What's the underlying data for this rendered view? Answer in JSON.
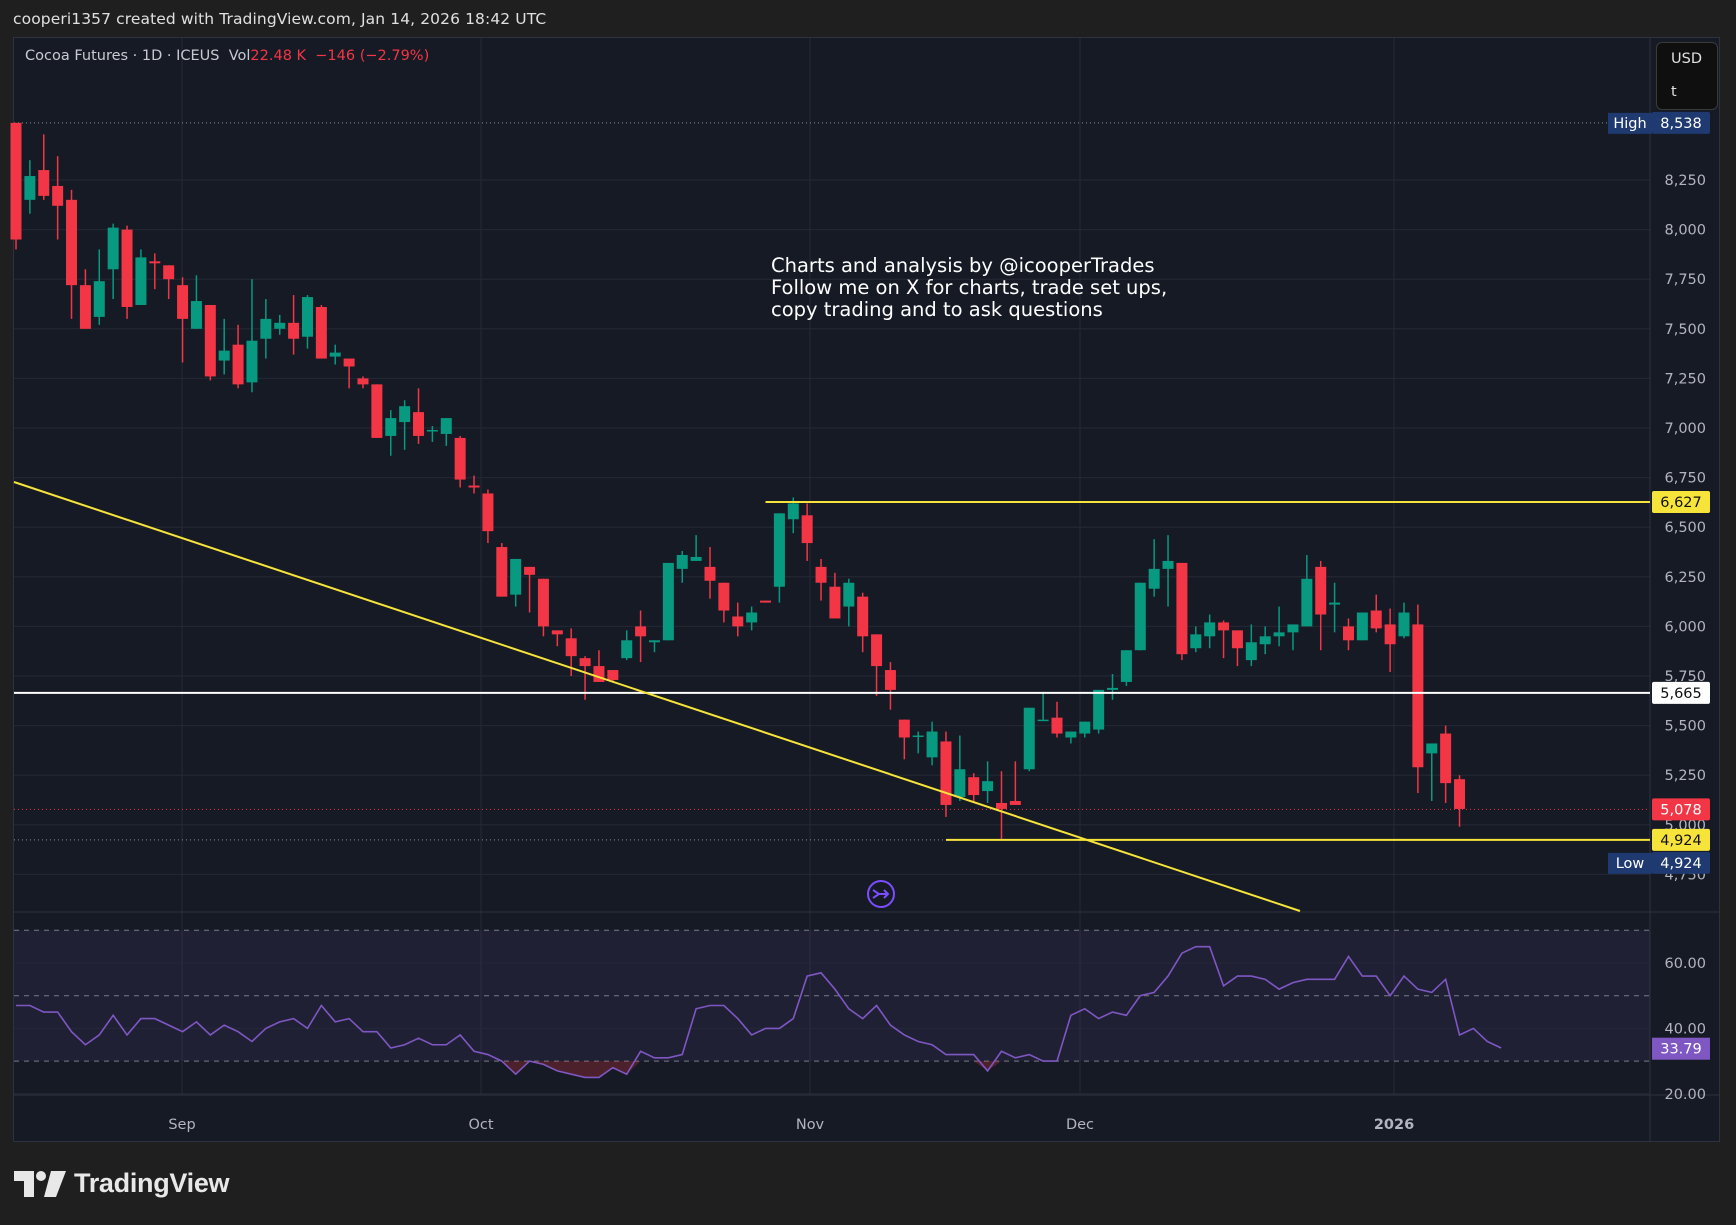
{
  "header": {
    "credit": "cooperi1357 created with TradingView.com, Jan 14, 2026 18:42 UTC"
  },
  "legend": {
    "symbol": "Cocoa Futures · 1D · ICEUS",
    "vol_label": "Vol",
    "vol_value": "22.48 K",
    "change": "−146 (−2.79%)"
  },
  "unit_box": {
    "currency": "USD",
    "unit": "t"
  },
  "annotation": {
    "lines": [
      "Charts and analysis by @icooperTrades",
      "Follow me on X for charts, trade set ups,",
      "copy trading and to ask questions"
    ]
  },
  "footer": {
    "brand": "TradingView"
  },
  "colors": {
    "up": "#089981",
    "down": "#f23645",
    "bg": "#161a25",
    "grid": "#252936",
    "trendline": "#f7e43a",
    "support": "#ffffff",
    "rsi": "#7e57c2",
    "high_low_badge": "#1e3a70",
    "last_price": "#f23645"
  },
  "chart_data": [
    {
      "type": "candlestick",
      "title": "Cocoa Futures · 1D · ICEUS",
      "xlabel": "",
      "ylabel": "USD/t",
      "ylim": [
        4700,
        8600
      ],
      "y_ticks": [
        8250,
        8000,
        7750,
        7500,
        7250,
        7000,
        6750,
        6500,
        6250,
        6000,
        5750,
        5500,
        5250,
        5000,
        4750
      ],
      "y_tick_labels": [
        "8,250",
        "8,000",
        "7,750",
        "7,500",
        "7,250",
        "7,000",
        "6,750",
        "6,500",
        "6,250",
        "6,000",
        "5,750",
        "5,500",
        "5,250",
        "5,000",
        "4,750"
      ],
      "x_tick_labels": [
        "Sep",
        "Oct",
        "Nov",
        "Dec",
        "2026"
      ],
      "price_labels": [
        {
          "label": "High",
          "value": "8,538",
          "color": "#1e3a70"
        },
        {
          "label": "",
          "value": "6,627",
          "color": "#f7e43a"
        },
        {
          "label": "",
          "value": "5,665",
          "color": "#ffffff"
        },
        {
          "label": "",
          "value": "5,078",
          "color": "#f23645"
        },
        {
          "label": "",
          "value": "4,924",
          "color": "#f7e43a"
        },
        {
          "label": "Low",
          "value": "4,924",
          "color": "#1e3a70"
        }
      ],
      "horizontal_lines": [
        {
          "name": "resistance",
          "value": 6627,
          "color": "#f7e43a",
          "from_index": 54
        },
        {
          "name": "support",
          "value": 5665,
          "color": "#ffffff",
          "from_index": 0
        },
        {
          "name": "low",
          "value": 4924,
          "color": "#f7e43a",
          "from_index": 67
        }
      ],
      "trendline": {
        "from": [
          0,
          6720
        ],
        "to": [
          83,
          4760
        ],
        "color": "#f7e43a"
      },
      "candles": [
        [
          8538,
          8538,
          7900,
          7950
        ],
        [
          8150,
          8350,
          8080,
          8270
        ],
        [
          8300,
          8480,
          8150,
          8170
        ],
        [
          8220,
          8370,
          7950,
          8120
        ],
        [
          8150,
          8200,
          7550,
          7720
        ],
        [
          7720,
          7800,
          7500,
          7500
        ],
        [
          7560,
          7900,
          7520,
          7740
        ],
        [
          7800,
          8030,
          7650,
          8010
        ],
        [
          8000,
          8020,
          7550,
          7610
        ],
        [
          7620,
          7900,
          7620,
          7860
        ],
        [
          7840,
          7880,
          7700,
          7830
        ],
        [
          7820,
          7800,
          7650,
          7750
        ],
        [
          7720,
          7760,
          7330,
          7550
        ],
        [
          7500,
          7770,
          7500,
          7640
        ],
        [
          7620,
          7620,
          7240,
          7260
        ],
        [
          7340,
          7550,
          7270,
          7390
        ],
        [
          7420,
          7520,
          7200,
          7220
        ],
        [
          7230,
          7750,
          7180,
          7440
        ],
        [
          7450,
          7650,
          7350,
          7550
        ],
        [
          7500,
          7570,
          7470,
          7530
        ],
        [
          7530,
          7670,
          7370,
          7450
        ],
        [
          7460,
          7670,
          7400,
          7660
        ],
        [
          7610,
          7620,
          7350,
          7350
        ],
        [
          7360,
          7420,
          7320,
          7380
        ],
        [
          7350,
          7320,
          7200,
          7310
        ],
        [
          7250,
          7260,
          7200,
          7220
        ],
        [
          7220,
          7200,
          6950,
          6950
        ],
        [
          6960,
          7090,
          6860,
          7050
        ],
        [
          7030,
          7140,
          6890,
          7110
        ],
        [
          7080,
          7200,
          6920,
          6960
        ],
        [
          6990,
          7010,
          6930,
          6990
        ],
        [
          6970,
          7050,
          6910,
          7050
        ],
        [
          6950,
          6960,
          6700,
          6740
        ],
        [
          6710,
          6760,
          6670,
          6700
        ],
        [
          6670,
          6690,
          6420,
          6480
        ],
        [
          6400,
          6420,
          6160,
          6150
        ],
        [
          6160,
          6320,
          6100,
          6340
        ],
        [
          6300,
          6300,
          6070,
          6260
        ],
        [
          6240,
          6200,
          5950,
          6000
        ],
        [
          5980,
          5890,
          5900,
          5960
        ],
        [
          5940,
          5990,
          5750,
          5850
        ],
        [
          5840,
          5850,
          5630,
          5800
        ],
        [
          5800,
          5880,
          5740,
          5720
        ],
        [
          5780,
          5780,
          5720,
          5730
        ],
        [
          5840,
          5980,
          5830,
          5930
        ],
        [
          6000,
          6080,
          5820,
          5950
        ],
        [
          5920,
          5800,
          5870,
          5930
        ],
        [
          5930,
          6300,
          5930,
          6320
        ],
        [
          6290,
          6380,
          6220,
          6360
        ],
        [
          6330,
          6460,
          6330,
          6350
        ],
        [
          6300,
          6400,
          6140,
          6230
        ],
        [
          6220,
          6150,
          6020,
          6080
        ],
        [
          6050,
          6120,
          5950,
          6000
        ],
        [
          6020,
          6100,
          5980,
          6070
        ],
        [
          6130,
          6130,
          6120,
          6120
        ],
        [
          6200,
          6150,
          6120,
          6570
        ],
        [
          6540,
          6650,
          6470,
          6620
        ],
        [
          6560,
          6620,
          6330,
          6420
        ],
        [
          6300,
          6340,
          6130,
          6220
        ],
        [
          6200,
          6270,
          6070,
          6040
        ],
        [
          6100,
          6240,
          6000,
          6220
        ],
        [
          6150,
          6170,
          5870,
          5950
        ],
        [
          5960,
          5770,
          5650,
          5800
        ],
        [
          5780,
          5820,
          5580,
          5680
        ],
        [
          5530,
          5520,
          5330,
          5440
        ],
        [
          5450,
          5470,
          5360,
          5450
        ],
        [
          5340,
          5520,
          5300,
          5470
        ],
        [
          5420,
          5470,
          5040,
          5100
        ],
        [
          5140,
          5450,
          5120,
          5280
        ],
        [
          5240,
          5260,
          5110,
          5150
        ],
        [
          5170,
          5320,
          5110,
          5220
        ],
        [
          5110,
          5270,
          4924,
          5080
        ],
        [
          5120,
          5320,
          5100,
          5100
        ],
        [
          5280,
          5530,
          5270,
          5590
        ],
        [
          5530,
          5670,
          5530,
          5530
        ],
        [
          5540,
          5620,
          5440,
          5460
        ],
        [
          5440,
          5470,
          5410,
          5470
        ],
        [
          5460,
          5520,
          5440,
          5520
        ],
        [
          5480,
          5520,
          5460,
          5680
        ],
        [
          5680,
          5760,
          5630,
          5690
        ],
        [
          5720,
          5830,
          5700,
          5880
        ],
        [
          5880,
          6220,
          5890,
          6220
        ],
        [
          6190,
          6440,
          6150,
          6290
        ],
        [
          6290,
          6460,
          6100,
          6330
        ],
        [
          6320,
          6310,
          5830,
          5860
        ],
        [
          5890,
          6000,
          5870,
          5960
        ],
        [
          5950,
          6060,
          5890,
          6020
        ],
        [
          6020,
          6030,
          5840,
          5980
        ],
        [
          5980,
          5950,
          5800,
          5890
        ],
        [
          5830,
          6010,
          5800,
          5920
        ],
        [
          5910,
          6000,
          5860,
          5950
        ],
        [
          5950,
          6100,
          5900,
          5970
        ],
        [
          5970,
          6010,
          5880,
          6010
        ],
        [
          6000,
          6360,
          6020,
          6240
        ],
        [
          6300,
          6330,
          5880,
          6060
        ],
        [
          6110,
          6220,
          5970,
          6120
        ],
        [
          6000,
          6040,
          5880,
          5930
        ],
        [
          5930,
          6060,
          5950,
          6070
        ],
        [
          6080,
          6160,
          5970,
          5990
        ],
        [
          6010,
          6090,
          5770,
          5910
        ],
        [
          5950,
          6120,
          5940,
          6070
        ],
        [
          6010,
          6110,
          5160,
          5290
        ],
        [
          5360,
          5390,
          5120,
          5410
        ],
        [
          5460,
          5500,
          5110,
          5210
        ],
        [
          5230,
          5250,
          4990,
          5080
        ]
      ]
    },
    {
      "type": "line",
      "title": "RSI",
      "ylim": [
        15,
        75
      ],
      "y_ticks": [
        60,
        40,
        20
      ],
      "y_tick_labels": [
        "60.00",
        "40.00",
        "20.00"
      ],
      "bands": [
        70,
        50,
        30
      ],
      "last_value": "33.79",
      "values": [
        47,
        47,
        45,
        45,
        39,
        35,
        38,
        44,
        38,
        43,
        43,
        41,
        39,
        42,
        38,
        41,
        39,
        36,
        40,
        42,
        43,
        40,
        47,
        42,
        43,
        39,
        39,
        34,
        35,
        37,
        35,
        35,
        38,
        33,
        32,
        30,
        26,
        30,
        29,
        27,
        26,
        25,
        25,
        28,
        26,
        33,
        31,
        31,
        32,
        46,
        47,
        47,
        43,
        38,
        40,
        40,
        43,
        56,
        57,
        52,
        46,
        43,
        47,
        41,
        38,
        36,
        35,
        32,
        32,
        32,
        27,
        33,
        31,
        32,
        30,
        30,
        44,
        46,
        43,
        45,
        44,
        50,
        51,
        56,
        63,
        65,
        65,
        53,
        56,
        56,
        55,
        52,
        54,
        55,
        55,
        55,
        62,
        56,
        56,
        50,
        56,
        52,
        51,
        55,
        38,
        40,
        36,
        34
      ]
    }
  ]
}
